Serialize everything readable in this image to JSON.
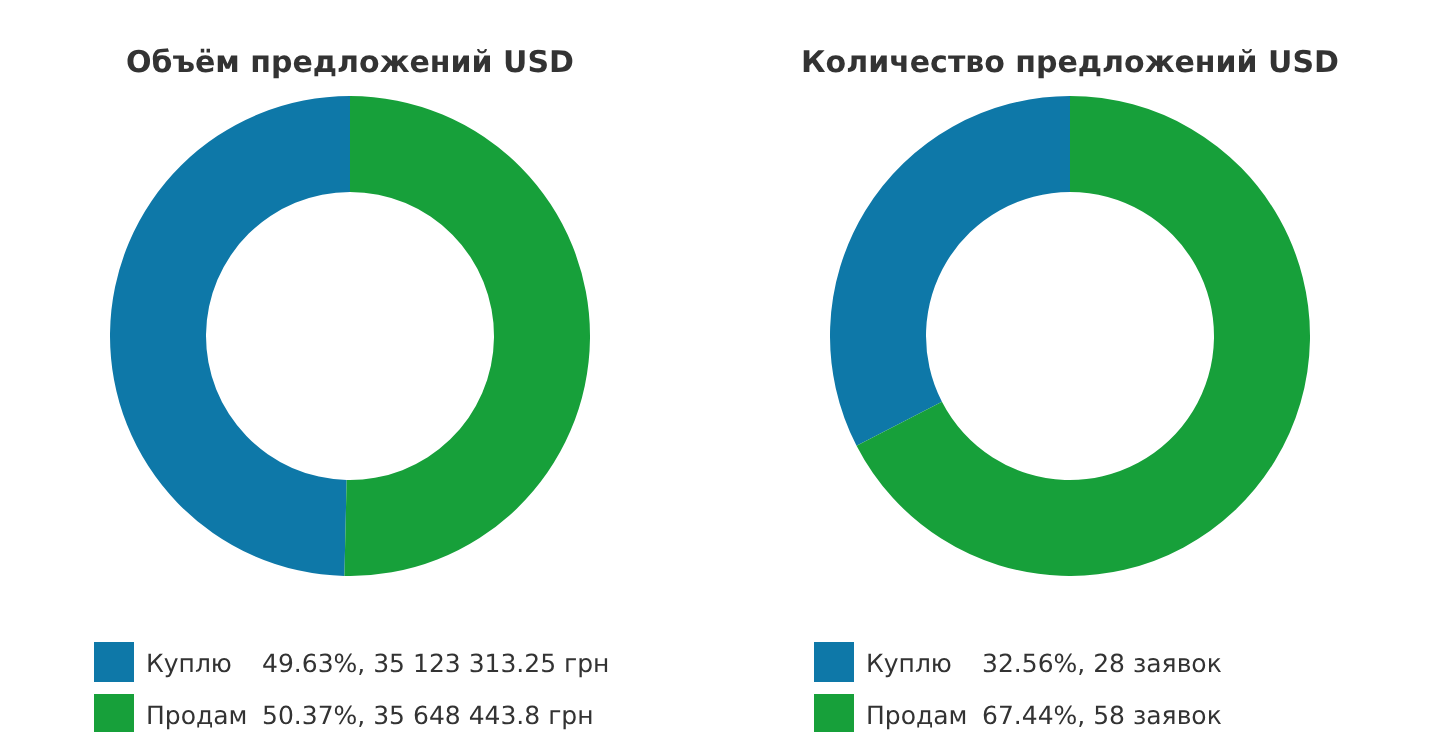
{
  "chart_data": [
    {
      "type": "donut",
      "title": "Объём предложений USD",
      "categories": [
        "Куплю",
        "Продам"
      ],
      "values": [
        35123313.25,
        35648443.8
      ],
      "colors": [
        "#0e78a8",
        "#17a03a"
      ],
      "value_labels": [
        "49.63%, 35 123 313.25 грн",
        "50.37%, 35 648 443.8 грн"
      ],
      "legend": "bottom"
    },
    {
      "type": "donut",
      "title": "Количество предложений USD",
      "categories": [
        "Куплю",
        "Продам"
      ],
      "values": [
        28,
        58
      ],
      "colors": [
        "#0e78a8",
        "#17a03a"
      ],
      "value_labels": [
        "32.56%, 28 заявок",
        "67.44%, 58 заявок"
      ],
      "legend": "bottom"
    }
  ]
}
